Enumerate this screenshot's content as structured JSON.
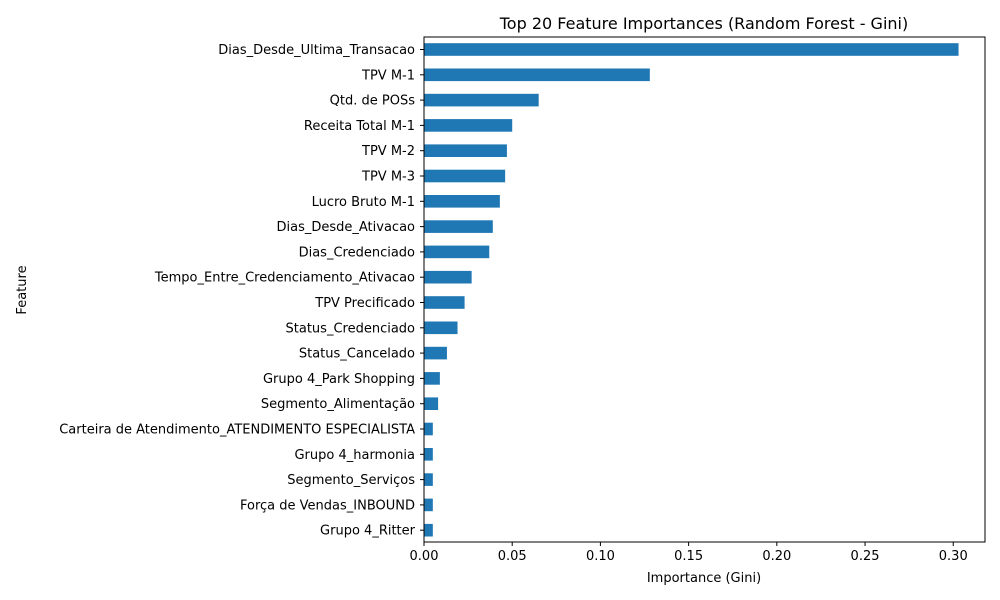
{
  "chart_data": {
    "type": "bar",
    "orientation": "horizontal",
    "title": "Top 20 Feature Importances (Random Forest - Gini)",
    "xlabel": "Importance (Gini)",
    "ylabel": "Feature",
    "xlim": [
      0,
      0.318
    ],
    "xticks": [
      "0.00",
      "0.05",
      "0.10",
      "0.15",
      "0.20",
      "0.25",
      "0.30"
    ],
    "xtick_values": [
      0,
      0.05,
      0.1,
      0.15,
      0.2,
      0.25,
      0.3
    ],
    "bar_color": "#1f77b4",
    "grid": false,
    "categories": [
      "Dias_Desde_Ultima_Transacao",
      "TPV M-1",
      "Qtd. de POSs",
      "Receita Total M-1",
      "TPV M-2",
      "TPV M-3",
      "Lucro Bruto M-1",
      "Dias_Desde_Ativacao",
      "Dias_Credenciado",
      "Tempo_Entre_Credenciamento_Ativacao",
      "TPV Precificado",
      "Status_Credenciado",
      "Status_Cancelado",
      "Grupo 4_Park Shopping",
      "Segmento_Alimentação",
      "Carteira de Atendimento_ATENDIMENTO ESPECIALISTA",
      "Grupo 4_harmonia",
      "Segmento_Serviços",
      "Força de Vendas_INBOUND",
      "Grupo 4_Ritter"
    ],
    "values": [
      0.303,
      0.128,
      0.065,
      0.05,
      0.047,
      0.046,
      0.043,
      0.039,
      0.037,
      0.027,
      0.023,
      0.019,
      0.013,
      0.009,
      0.008,
      0.005,
      0.005,
      0.005,
      0.005,
      0.005
    ]
  }
}
